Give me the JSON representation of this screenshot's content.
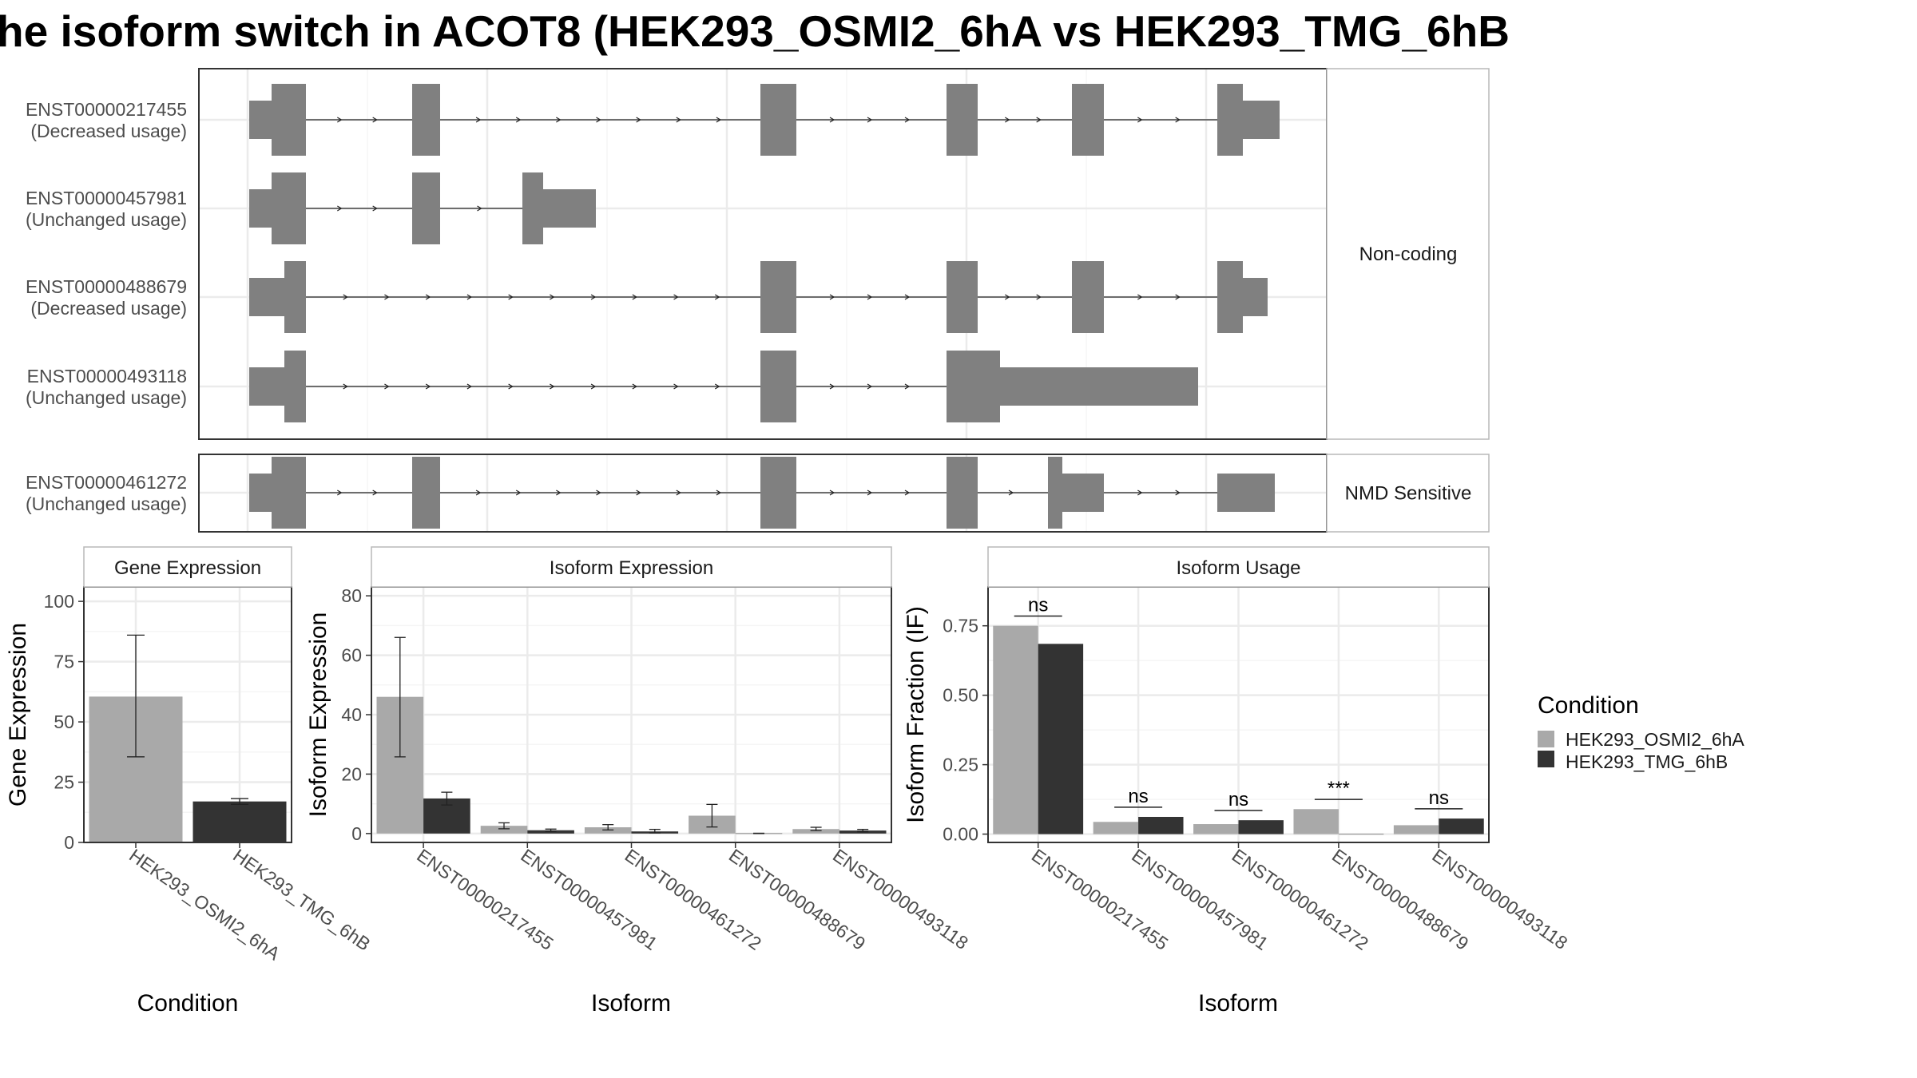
{
  "title": "he isoform switch in ACOT8 (HEK293_OSMI2_6hA vs HEK293_TMG_6hB",
  "colors": {
    "exon": "#808080",
    "cond_a": "#A9A9A9",
    "cond_b": "#333333",
    "grid_major": "#EBEBEB",
    "grid_minor": "#F5F5F5",
    "panel_border": "#333333",
    "strip_border": "#B8B8B8"
  },
  "transcript_panel": {
    "groups": [
      {
        "label": "Non-coding",
        "transcripts": [
          {
            "id": "ENST00000217455",
            "status": "(Decreased usage)"
          },
          {
            "id": "ENST00000457981",
            "status": "(Unchanged usage)"
          },
          {
            "id": "ENST00000488679",
            "status": "(Decreased usage)"
          },
          {
            "id": "ENST00000493118",
            "status": "(Unchanged usage)"
          }
        ]
      },
      {
        "label": "NMD Sensitive",
        "transcripts": [
          {
            "id": "ENST00000461272",
            "status": "(Unchanged usage)"
          }
        ]
      }
    ]
  },
  "chart_data": [
    {
      "type": "bar",
      "title": "Gene Expression",
      "xlabel": "Condition",
      "ylabel": "Gene Expression",
      "categories": [
        "HEK293_OSMI2_6hA",
        "HEK293_TMG_6hB"
      ],
      "values": [
        60.5,
        17.0
      ],
      "error_low": [
        35.5,
        15.8
      ],
      "error_high": [
        86.0,
        18.2
      ],
      "ylim": [
        0,
        106
      ],
      "yticks": [
        0,
        25,
        50,
        75,
        100
      ],
      "grid": true
    },
    {
      "type": "bar",
      "title": "Isoform Expression",
      "xlabel": "Isoform",
      "ylabel": "Isoform Expression",
      "categories": [
        "ENST00000217455",
        "ENST00000457981",
        "ENST00000461272",
        "ENST00000488679",
        "ENST00000493118"
      ],
      "series": [
        {
          "name": "HEK293_OSMI2_6hA",
          "values": [
            46.0,
            2.6,
            2.1,
            6.0,
            1.5
          ],
          "error_low": [
            25.8,
            1.6,
            1.2,
            2.2,
            1.0
          ],
          "error_high": [
            66.0,
            3.6,
            3.0,
            9.8,
            2.1
          ]
        },
        {
          "name": "HEK293_TMG_6hB",
          "values": [
            11.8,
            1.1,
            0.7,
            0.05,
            1.0
          ],
          "error_low": [
            9.6,
            0.7,
            0.2,
            0.0,
            0.6
          ],
          "error_high": [
            13.9,
            1.5,
            1.4,
            0.1,
            1.4
          ]
        }
      ],
      "ylim": [
        -3,
        83
      ],
      "yticks": [
        0,
        20,
        40,
        60,
        80
      ],
      "grid": true
    },
    {
      "type": "bar",
      "title": "Isoform Usage",
      "xlabel": "Isoform",
      "ylabel": "Isoform Fraction (IF)",
      "categories": [
        "ENST00000217455",
        "ENST00000457981",
        "ENST00000461272",
        "ENST00000488679",
        "ENST00000493118"
      ],
      "series": [
        {
          "name": "HEK293_OSMI2_6hA",
          "values": [
            0.75,
            0.044,
            0.036,
            0.09,
            0.032
          ]
        },
        {
          "name": "HEK293_TMG_6hB",
          "values": [
            0.685,
            0.062,
            0.05,
            0.0,
            0.056
          ]
        }
      ],
      "significance": [
        "ns",
        "ns",
        "ns",
        "***",
        "ns"
      ],
      "ylim": [
        -0.03,
        0.89
      ],
      "yticks": [
        0.0,
        0.25,
        0.5,
        0.75
      ],
      "ytick_labels": [
        "0.00",
        "0.25",
        "0.50",
        "0.75"
      ],
      "grid": true
    }
  ],
  "legend": {
    "title": "Condition",
    "position": "right",
    "items": [
      "HEK293_OSMI2_6hA",
      "HEK293_TMG_6hB"
    ]
  }
}
